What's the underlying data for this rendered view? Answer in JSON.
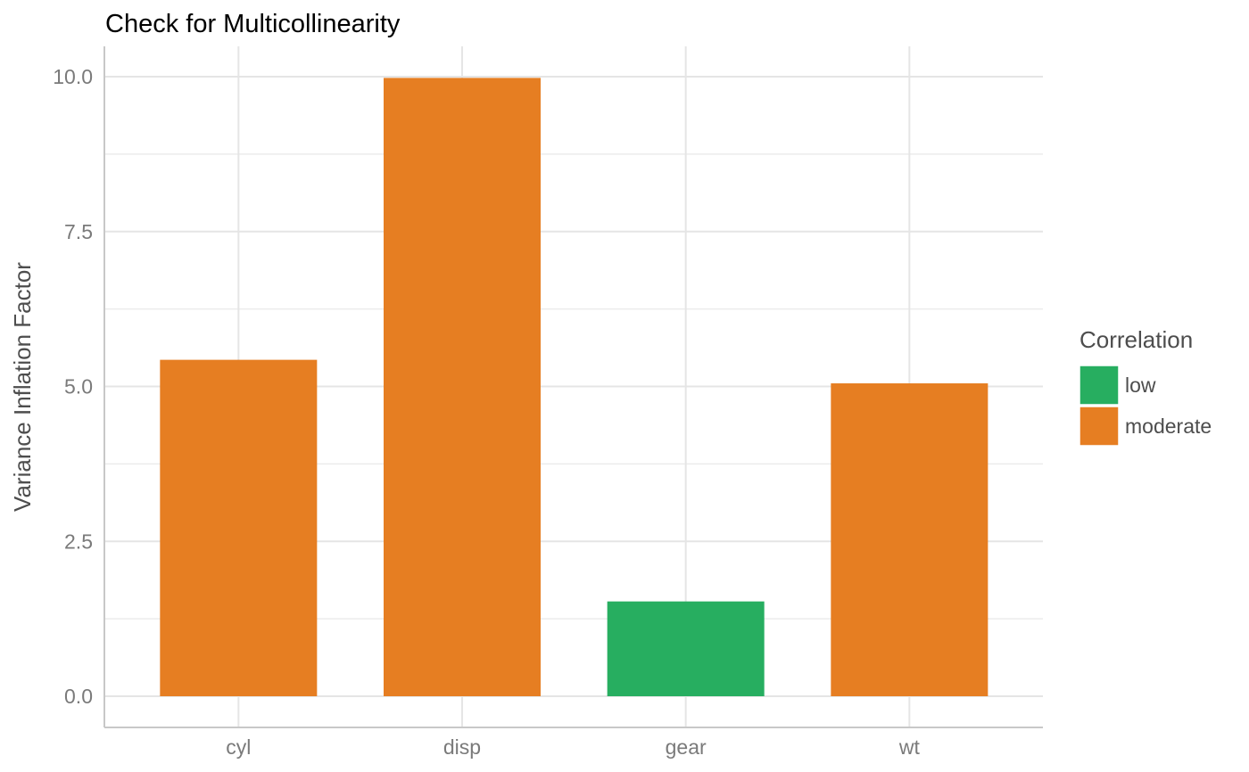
{
  "chart_data": {
    "type": "bar",
    "title": "Check for Multicollinearity",
    "xlabel": "",
    "ylabel": "Variance Inflation Factor",
    "categories": [
      "cyl",
      "disp",
      "gear",
      "wt"
    ],
    "values": [
      5.43,
      9.98,
      1.53,
      5.05
    ],
    "groups": [
      "moderate",
      "moderate",
      "low",
      "moderate"
    ],
    "ylim": [
      -0.5,
      10.5
    ],
    "yticks": [
      0,
      2.5,
      5,
      7.5,
      10
    ],
    "ytick_labels": [
      "0.0",
      "2.5",
      "5.0",
      "7.5",
      "10.0"
    ],
    "grid": true,
    "legend": {
      "title": "Correlation",
      "position": "right",
      "entries": [
        {
          "label": "low",
          "color": "#27ae60"
        },
        {
          "label": "moderate",
          "color": "#e67e22"
        }
      ]
    }
  }
}
